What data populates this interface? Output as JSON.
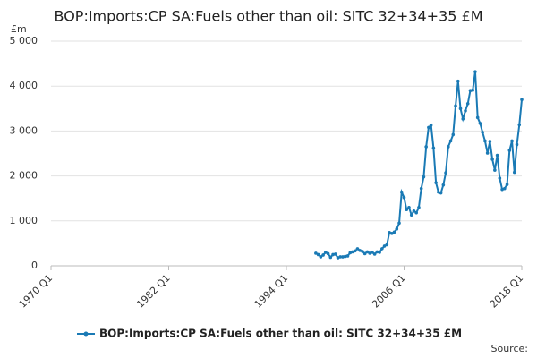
{
  "chart_data": {
    "type": "line",
    "title": "BOP:Imports:CP SA:Fuels other than oil: SITC 32+34+35 £M",
    "y_label": "£m",
    "source": "Source:",
    "x": [
      "1997 Q1",
      "1997 Q2",
      "1997 Q3",
      "1997 Q4",
      "1998 Q1",
      "1998 Q2",
      "1998 Q3",
      "1998 Q4",
      "1999 Q1",
      "1999 Q2",
      "1999 Q3",
      "1999 Q4",
      "2000 Q1",
      "2000 Q2",
      "2000 Q3",
      "2000 Q4",
      "2001 Q1",
      "2001 Q2",
      "2001 Q3",
      "2001 Q4",
      "2002 Q1",
      "2002 Q2",
      "2002 Q3",
      "2002 Q4",
      "2003 Q1",
      "2003 Q2",
      "2003 Q3",
      "2003 Q4",
      "2004 Q1",
      "2004 Q2",
      "2004 Q3",
      "2004 Q4",
      "2005 Q1",
      "2005 Q2",
      "2005 Q3",
      "2005 Q4",
      "2006 Q1",
      "2006 Q2",
      "2006 Q3",
      "2006 Q4",
      "2007 Q1",
      "2007 Q2",
      "2007 Q3",
      "2007 Q4",
      "2008 Q1",
      "2008 Q2",
      "2008 Q3",
      "2008 Q4",
      "2009 Q1",
      "2009 Q2",
      "2009 Q3",
      "2009 Q4",
      "2010 Q1",
      "2010 Q2",
      "2010 Q3",
      "2010 Q4",
      "2011 Q1",
      "2011 Q2",
      "2011 Q3",
      "2011 Q4",
      "2012 Q1",
      "2012 Q2",
      "2012 Q3",
      "2012 Q4",
      "2013 Q1",
      "2013 Q2",
      "2013 Q3",
      "2013 Q4",
      "2014 Q1",
      "2014 Q2",
      "2014 Q3",
      "2014 Q4",
      "2015 Q1",
      "2015 Q2",
      "2015 Q3",
      "2015 Q4",
      "2016 Q1",
      "2016 Q2",
      "2016 Q3",
      "2016 Q4",
      "2017 Q1",
      "2017 Q2",
      "2017 Q3",
      "2017 Q4",
      "2018 Q1"
    ],
    "series": [
      {
        "name": "BOP:Imports:CP SA:Fuels other than oil: SITC 32+34+35 £M",
        "color": "#1a7ab5",
        "values": [
          280,
          250,
          200,
          240,
          300,
          270,
          190,
          250,
          260,
          180,
          200,
          200,
          210,
          220,
          290,
          310,
          330,
          380,
          340,
          320,
          270,
          310,
          280,
          300,
          260,
          310,
          300,
          380,
          440,
          470,
          740,
          720,
          750,
          820,
          950,
          1640,
          1520,
          1250,
          1300,
          1130,
          1220,
          1180,
          1300,
          1720,
          1980,
          2650,
          3080,
          3130,
          2620,
          1850,
          1640,
          1620,
          1800,
          2070,
          2650,
          2780,
          2920,
          3560,
          4110,
          3500,
          3270,
          3450,
          3610,
          3900,
          3910,
          4320,
          3300,
          3170,
          2970,
          2780,
          2510,
          2770,
          2370,
          2130,
          2460,
          1950,
          1700,
          1720,
          1810,
          2570,
          2780,
          2080,
          2700,
          3140,
          3700
        ]
      }
    ],
    "xlim": [
      "1970 Q1",
      "2018 Q1"
    ],
    "xticks": [
      "1970 Q1",
      "1982 Q1",
      "1994 Q1",
      "2006 Q1",
      "2018 Q1"
    ],
    "ylim": [
      0,
      5000
    ],
    "yticks": [
      0,
      {
        "value": 1000,
        "label": "1 000"
      },
      {
        "value": 2000,
        "label": "2 000"
      },
      {
        "value": 3000,
        "label": "3 000"
      },
      {
        "value": 4000,
        "label": "4 000"
      },
      {
        "value": 5000,
        "label": "5 000"
      }
    ],
    "grid": true,
    "legend": "bottom"
  }
}
